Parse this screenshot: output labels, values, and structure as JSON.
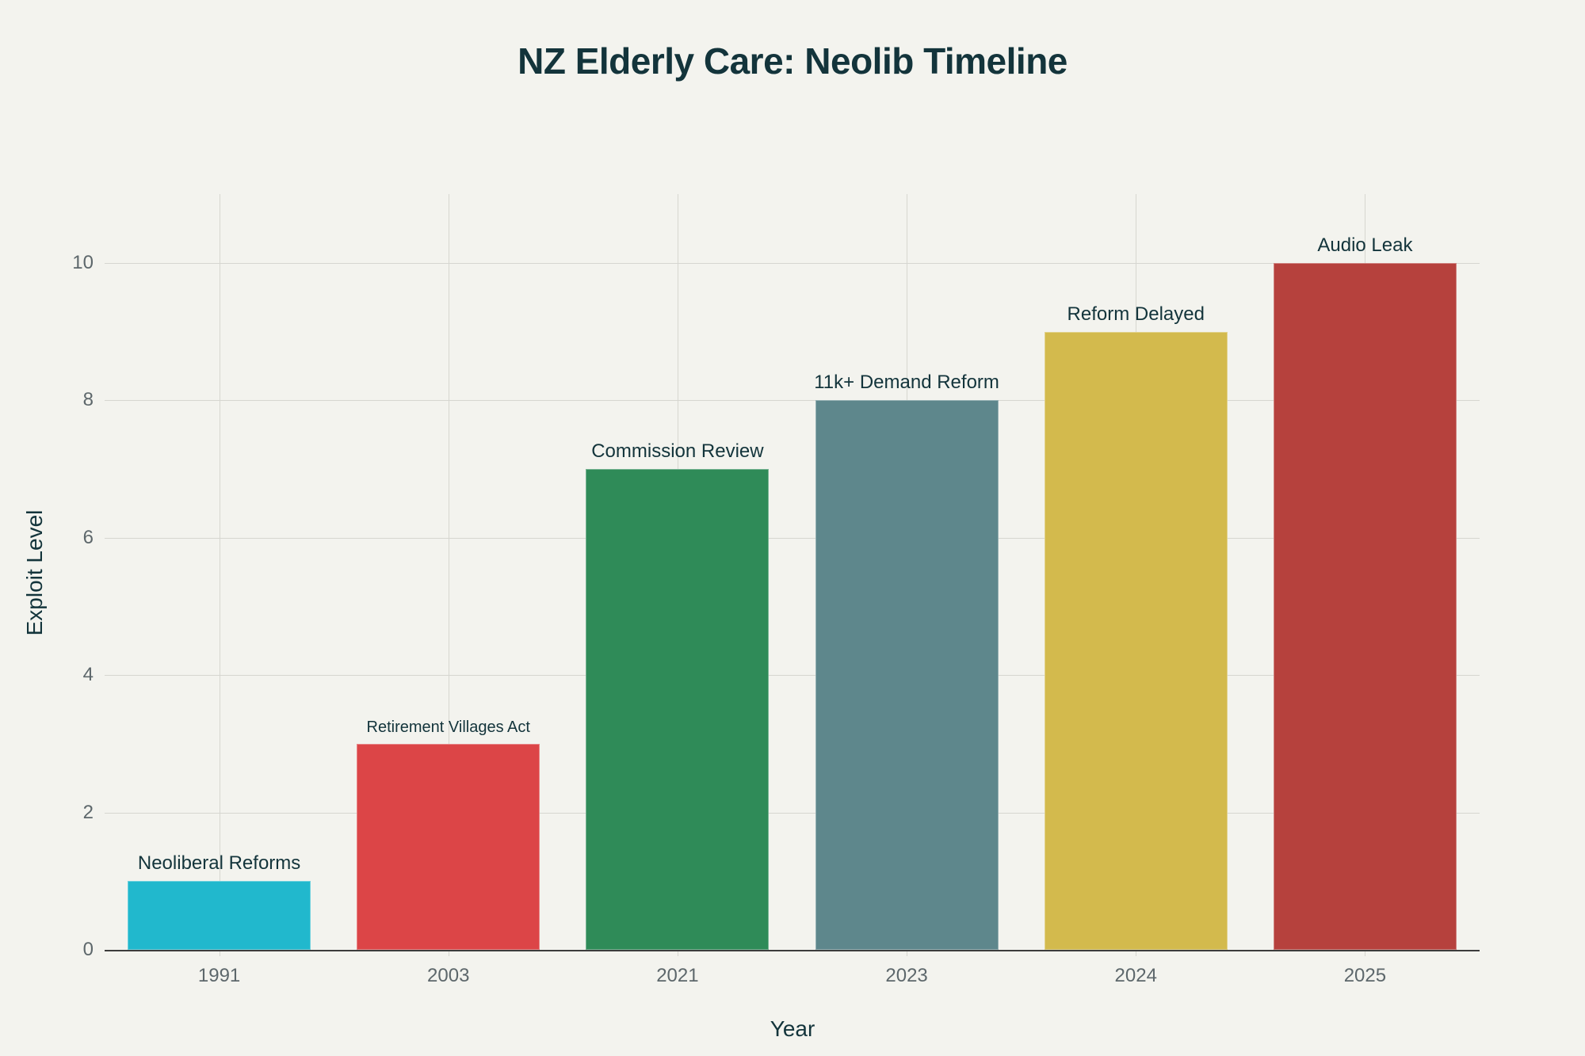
{
  "title": "NZ Elderly Care: Neolib Timeline",
  "axes": {
    "xlabel": "Year",
    "ylabel": "Exploit Level",
    "yticks": [
      "0",
      "2",
      "4",
      "6",
      "8",
      "10"
    ],
    "xticks": [
      "1991",
      "2003",
      "2021",
      "2023",
      "2024",
      "2025"
    ]
  },
  "bars": [
    {
      "year": "1991",
      "value": 1,
      "label": "Neoliberal Reforms",
      "color": "#21b8cd"
    },
    {
      "year": "2003",
      "value": 3,
      "label": "Retirement Villages Act",
      "color": "#dc4547"
    },
    {
      "year": "2021",
      "value": 7,
      "label": "Commission Review",
      "color": "#2f8b58"
    },
    {
      "year": "2023",
      "value": 8,
      "label": "11k+ Demand Reform",
      "color": "#5e878c"
    },
    {
      "year": "2024",
      "value": 9,
      "label": "Reform Delayed",
      "color": "#d3ba4d"
    },
    {
      "year": "2025",
      "value": 10,
      "label": "Audio Leak",
      "color": "#b6413d"
    }
  ],
  "chart_data": {
    "type": "bar",
    "title": "NZ Elderly Care: Neolib Timeline",
    "xlabel": "Year",
    "ylabel": "Exploit Level",
    "categories": [
      "1991",
      "2003",
      "2021",
      "2023",
      "2024",
      "2025"
    ],
    "values": [
      1,
      3,
      7,
      8,
      9,
      10
    ],
    "annotations": [
      "Neoliberal Reforms",
      "Retirement Villages Act",
      "Commission Review",
      "11k+ Demand Reform",
      "Reform Delayed",
      "Audio Leak"
    ],
    "colors": [
      "#21b8cd",
      "#dc4547",
      "#2f8b58",
      "#5e878c",
      "#d3ba4d",
      "#b6413d"
    ],
    "ylim": [
      0,
      11
    ],
    "yticks": [
      0,
      2,
      4,
      6,
      8,
      10
    ],
    "grid": true,
    "legend": false
  }
}
